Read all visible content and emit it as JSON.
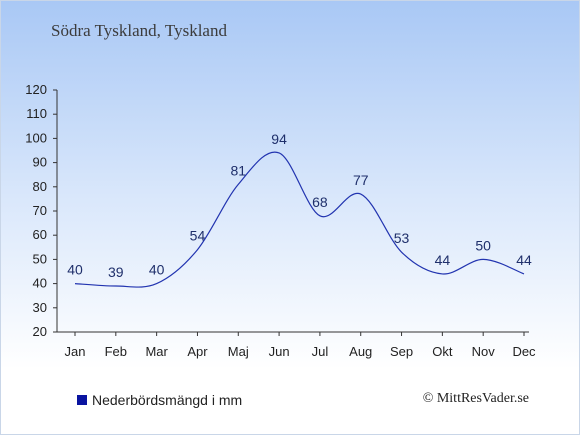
{
  "header": {
    "location": "Södra Tyskland, Tyskland"
  },
  "legend": {
    "label": "Nederbördsmängd i mm",
    "color": "#0a14a0"
  },
  "footer": {
    "copyright": "© MittResVader.se"
  },
  "chart_data": {
    "type": "line",
    "categories": [
      "Jan",
      "Feb",
      "Mar",
      "Apr",
      "Maj",
      "Jun",
      "Jul",
      "Aug",
      "Sep",
      "Okt",
      "Nov",
      "Dec"
    ],
    "series": [
      {
        "name": "Nederbördsmängd i mm",
        "values": [
          40,
          39,
          40,
          54,
          81,
          94,
          68,
          77,
          53,
          44,
          50,
          44
        ],
        "color": "#2234b0"
      }
    ],
    "ylim": [
      20,
      120
    ],
    "yticks": [
      20,
      30,
      40,
      50,
      60,
      70,
      80,
      90,
      100,
      110,
      120
    ],
    "grid": false,
    "legend_position": "bottom-left"
  }
}
